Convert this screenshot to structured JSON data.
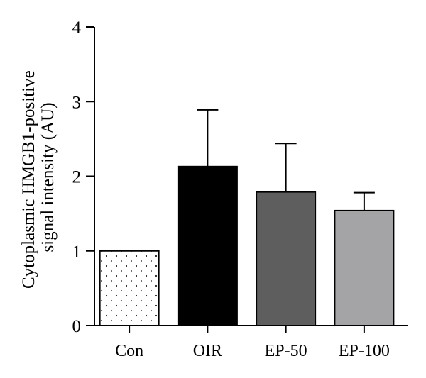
{
  "chart_data": {
    "type": "bar",
    "title": "",
    "xlabel": "",
    "ylabel": [
      "Cytoplasmic HMGB1-positive",
      "signal intensity (AU)"
    ],
    "categories": [
      "Con",
      "OIR",
      "EP-50",
      "EP-100"
    ],
    "values": [
      1.0,
      2.13,
      1.79,
      1.54
    ],
    "error_upper": [
      0,
      0.76,
      0.65,
      0.24
    ],
    "bar_colors": [
      "#ffffff",
      "#000000",
      "#5e5e5e",
      "#a4a4a6"
    ],
    "bar_patterns": [
      "dotted",
      "none",
      "none",
      "none"
    ],
    "ylim": [
      0,
      4
    ],
    "yticks": [
      0,
      1,
      2,
      3,
      4
    ],
    "grid": false,
    "legend": "none"
  }
}
